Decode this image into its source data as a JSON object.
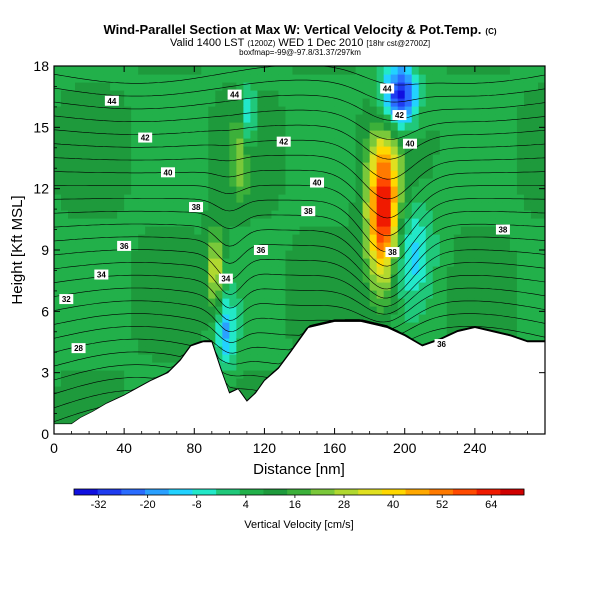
{
  "header": {
    "title": "Wind-Parallel Section at Max W: Vertical Velocity & Pot.Temp.",
    "title_mark": "(C)",
    "valid_prefix": "Valid 1400 LST",
    "valid_small": "(1200Z)",
    "valid_date": "WED 1 Dec 2010",
    "valid_suffix": "[18hr cst@2700Z]",
    "subtitle": "boxfmap=-99@-97.8/31.37/297km"
  },
  "chart_data": {
    "type": "cross-section",
    "title": "Wind-Parallel Section at Max W: Vertical Velocity & Pot.Temp.",
    "xlabel": "Distance [nm]",
    "ylabel": "Height [Kft MSL]",
    "xlim": [
      0,
      280
    ],
    "ylim": [
      0,
      18
    ],
    "xticks": [
      "0",
      "40",
      "80",
      "120",
      "160",
      "200",
      "240"
    ],
    "yticks": [
      "0",
      "3",
      "6",
      "9",
      "12",
      "15",
      "18"
    ],
    "xtick_values": [
      0,
      40,
      80,
      120,
      160,
      200,
      240
    ],
    "ytick_values": [
      0,
      3,
      6,
      9,
      12,
      15,
      18
    ],
    "colorbar": {
      "label": "Vertical Velocity [cm/s]",
      "tick_labels": [
        "-32",
        "-20",
        "-8",
        "4",
        "16",
        "28",
        "40",
        "52",
        "64"
      ],
      "tick_values": [
        -32,
        -20,
        -8,
        4,
        16,
        28,
        40,
        52,
        64
      ],
      "range": [
        -38,
        72
      ],
      "colors": [
        "#1010e0",
        "#1e3cf0",
        "#2a6cff",
        "#2aa0ff",
        "#22d2ff",
        "#22e8c8",
        "#20c87a",
        "#22b04a",
        "#1e9a3c",
        "#3cb03a",
        "#7ac83a",
        "#b0d830",
        "#e0e020",
        "#ffd800",
        "#ffa800",
        "#ff7a00",
        "#ff4a00",
        "#f01a00",
        "#d00000"
      ]
    },
    "terrain": [
      [
        0,
        0.5
      ],
      [
        10,
        0.5
      ],
      [
        15,
        0.8
      ],
      [
        22,
        1.1
      ],
      [
        30,
        1.5
      ],
      [
        40,
        1.9
      ],
      [
        55,
        2.6
      ],
      [
        65,
        3.0
      ],
      [
        72,
        3.6
      ],
      [
        78,
        4.3
      ],
      [
        85,
        4.5
      ],
      [
        90,
        4.5
      ],
      [
        95,
        3.2
      ],
      [
        100,
        2.0
      ],
      [
        105,
        2.2
      ],
      [
        110,
        1.6
      ],
      [
        115,
        2.0
      ],
      [
        120,
        2.6
      ],
      [
        128,
        3.2
      ],
      [
        135,
        4.0
      ],
      [
        145,
        5.2
      ],
      [
        160,
        5.5
      ],
      [
        175,
        5.5
      ],
      [
        190,
        5.2
      ],
      [
        200,
        4.8
      ],
      [
        210,
        4.3
      ],
      [
        220,
        4.6
      ],
      [
        230,
        5.0
      ],
      [
        240,
        5.2
      ],
      [
        250,
        5.0
      ],
      [
        260,
        4.8
      ],
      [
        270,
        4.5
      ],
      [
        280,
        4.5
      ]
    ],
    "theta_contour_labels": [
      {
        "value": "44",
        "x": 33,
        "y": 16.3
      },
      {
        "value": "44",
        "x": 103,
        "y": 16.6
      },
      {
        "value": "44",
        "x": 190,
        "y": 16.9
      },
      {
        "value": "42",
        "x": 52,
        "y": 14.5
      },
      {
        "value": "42",
        "x": 131,
        "y": 14.3
      },
      {
        "value": "42",
        "x": 197,
        "y": 15.6
      },
      {
        "value": "40",
        "x": 65,
        "y": 12.8
      },
      {
        "value": "40",
        "x": 150,
        "y": 12.3
      },
      {
        "value": "40",
        "x": 203,
        "y": 14.2
      },
      {
        "value": "38",
        "x": 81,
        "y": 11.1
      },
      {
        "value": "38",
        "x": 145,
        "y": 10.9
      },
      {
        "value": "38",
        "x": 193,
        "y": 8.9
      },
      {
        "value": "38",
        "x": 256,
        "y": 10.0
      },
      {
        "value": "36",
        "x": 40,
        "y": 9.2
      },
      {
        "value": "36",
        "x": 118,
        "y": 9.0
      },
      {
        "value": "36",
        "x": 221,
        "y": 4.4
      },
      {
        "value": "34",
        "x": 27,
        "y": 7.8
      },
      {
        "value": "34",
        "x": 98,
        "y": 7.6
      },
      {
        "value": "32",
        "x": 7,
        "y": 6.6
      },
      {
        "value": "28",
        "x": 14,
        "y": 4.2
      }
    ],
    "vertical_velocity_features": [
      {
        "type": "updraft",
        "x": 188,
        "y": 10.8,
        "peak": 70
      },
      {
        "type": "updraft",
        "x": 92,
        "y": 8.0,
        "peak": 35
      },
      {
        "type": "updraft",
        "x": 106,
        "y": 13.5,
        "peak": 20
      },
      {
        "type": "downdraft",
        "x": 197,
        "y": 16.5,
        "peak": -36
      },
      {
        "type": "downdraft",
        "x": 98,
        "y": 5.0,
        "peak": -14
      },
      {
        "type": "downdraft",
        "x": 111,
        "y": 15.5,
        "peak": -12
      },
      {
        "type": "downdraft",
        "x": 203,
        "y": 9.0,
        "peak": -10
      }
    ]
  }
}
